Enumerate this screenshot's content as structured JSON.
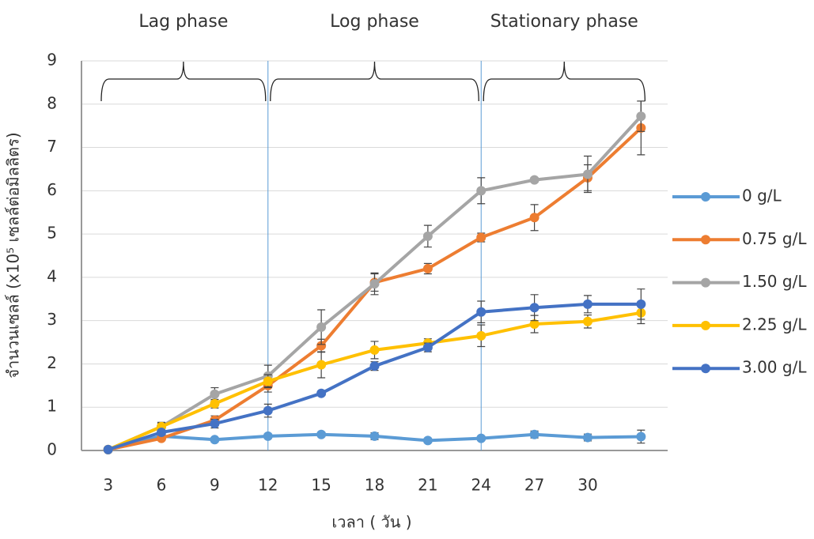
{
  "chart_data": {
    "type": "line",
    "phases": [
      "Lag phase",
      "Log phase",
      "Stationary phase"
    ],
    "phase_lines": [
      12,
      24
    ],
    "y_label": "จำนวนเซลล์ (x10⁵ เซลล์ต่อมิลลิตร)",
    "x_label": "เวลา ( วัน )",
    "categories": [
      3,
      6,
      9,
      12,
      15,
      18,
      21,
      24,
      27,
      30,
      null
    ],
    "ylim": [
      0,
      9
    ],
    "yticks": [
      0,
      1,
      2,
      3,
      4,
      5,
      6,
      7,
      8,
      9
    ],
    "grid": true,
    "legend": "right",
    "series": [
      {
        "name": "0 g/L",
        "color": "#5b9bd5",
        "values": [
          0.02,
          0.33,
          0.25,
          0.33,
          0.37,
          0.33,
          0.23,
          0.28,
          0.37,
          0.3,
          0.32
        ],
        "errors": [
          0,
          0.05,
          0.05,
          0.05,
          0.05,
          0.08,
          0.05,
          0.05,
          0.08,
          0.08,
          0.15
        ]
      },
      {
        "name": "0.75 g/L",
        "color": "#ed7d31",
        "values": [
          0.02,
          0.28,
          0.7,
          1.5,
          2.42,
          3.88,
          4.2,
          4.92,
          5.38,
          6.3,
          7.45
        ],
        "errors": [
          0,
          0.05,
          0.1,
          0.15,
          0.15,
          0.2,
          0.12,
          0.1,
          0.3,
          0.3,
          0.62
        ]
      },
      {
        "name": "1.50 g/L",
        "color": "#a5a5a5",
        "values": [
          0.02,
          0.55,
          1.3,
          1.72,
          2.85,
          3.85,
          4.95,
          6.0,
          6.25,
          6.38,
          7.72
        ],
        "errors": [
          0,
          0.1,
          0.15,
          0.25,
          0.4,
          0.25,
          0.25,
          0.3,
          0.05,
          0.42,
          0.35
        ]
      },
      {
        "name": "2.25 g/L",
        "color": "#ffc000",
        "values": [
          0.02,
          0.55,
          1.08,
          1.6,
          1.98,
          2.32,
          2.48,
          2.65,
          2.92,
          2.98,
          3.18
        ],
        "errors": [
          0,
          0.08,
          0.1,
          0.15,
          0.3,
          0.2,
          0.1,
          0.25,
          0.2,
          0.15,
          0.25
        ]
      },
      {
        "name": "3.00 g/L",
        "color": "#4472c4",
        "values": [
          0.02,
          0.42,
          0.62,
          0.92,
          1.32,
          1.95,
          2.38,
          3.2,
          3.3,
          3.38,
          3.38
        ],
        "errors": [
          0,
          0.05,
          0.1,
          0.15,
          0.05,
          0.1,
          0.1,
          0.25,
          0.3,
          0.2,
          0.35
        ]
      }
    ]
  }
}
